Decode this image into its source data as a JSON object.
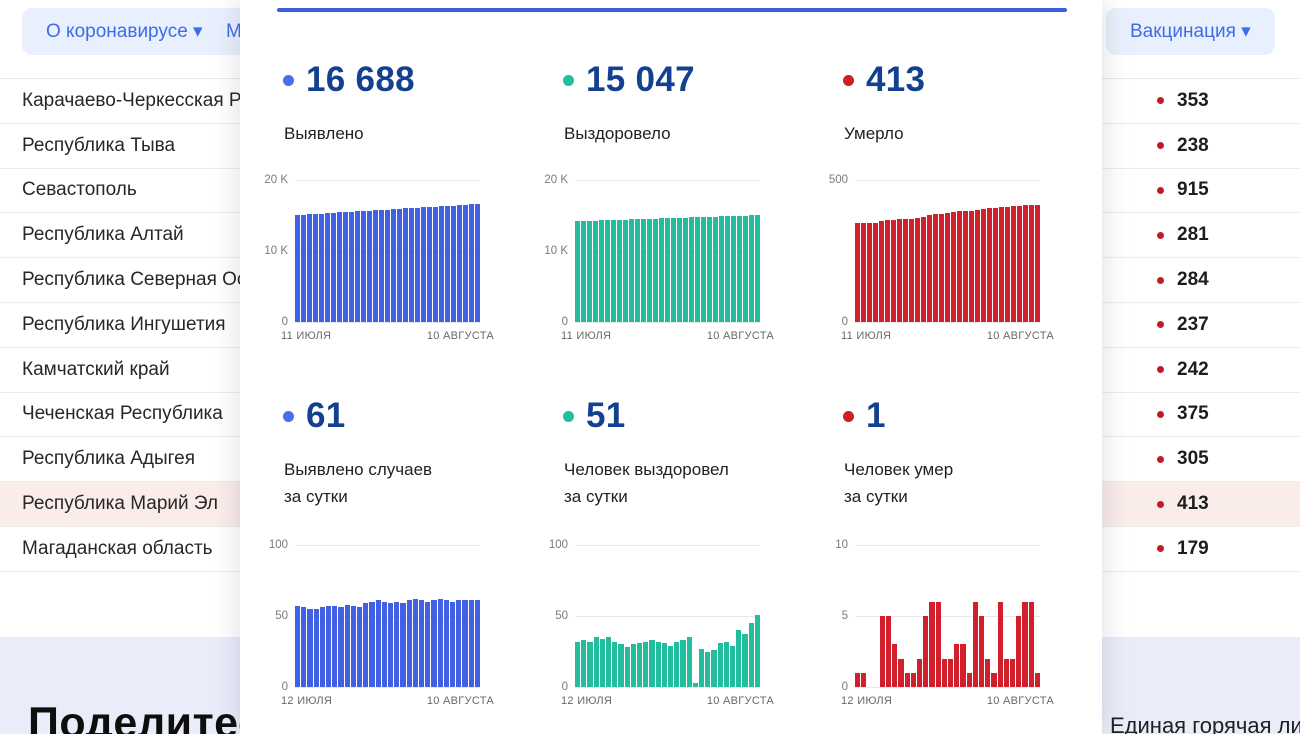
{
  "nav": {
    "about_label": "О коронавирусе ▾",
    "partial_label": "М",
    "vaccination_label": "Вакцинация ▾"
  },
  "table": {
    "rows": [
      {
        "region": "Карачаево-Черкесская Ре",
        "value": "353",
        "highlighted": false
      },
      {
        "region": "Республика Тыва",
        "value": "238",
        "highlighted": false
      },
      {
        "region": "Севастополь",
        "value": "915",
        "highlighted": false
      },
      {
        "region": "Республика Алтай",
        "value": "281",
        "highlighted": false
      },
      {
        "region": "Республика Северная Осе",
        "value": "284",
        "highlighted": false
      },
      {
        "region": "Республика Ингушетия",
        "value": "237",
        "highlighted": false
      },
      {
        "region": "Камчатский край",
        "value": "242",
        "highlighted": false
      },
      {
        "region": "Чеченская Республика",
        "value": "375",
        "highlighted": false
      },
      {
        "region": "Республика Адыгея",
        "value": "305",
        "highlighted": false
      },
      {
        "region": "Республика Марий Эл",
        "value": "413",
        "highlighted": true
      },
      {
        "region": "Магаданская область",
        "value": "179",
        "highlighted": false
      }
    ],
    "value_dot_color": "#C21B24"
  },
  "modal": {
    "accent_color": "#3A5FDB",
    "stats": [
      {
        "value": "16 688",
        "label_line1": "Выявлено",
        "label_line2": "",
        "accent": "#4A6CF1",
        "bar_color": "#4160E3",
        "chart": {
          "type": "bar",
          "ymax": 20000,
          "yticks": [
            "20 K",
            "10 K",
            "0"
          ],
          "x_start": "11 ИЮЛЯ",
          "x_end": "10 АВГУСТА",
          "values": [
            15057,
            15112,
            15167,
            15220,
            15272,
            15325,
            15378,
            15430,
            15482,
            15534,
            15586,
            15638,
            15690,
            15742,
            15793,
            15845,
            15896,
            15948,
            15999,
            16050,
            16101,
            16152,
            16203,
            16254,
            16305,
            16356,
            16407,
            16458,
            16509,
            16627,
            16688
          ]
        }
      },
      {
        "value": "15 047",
        "label_line1": "Выздоровело",
        "label_line2": "",
        "accent": "#1FBF9F",
        "bar_color": "#22BD9D",
        "chart": {
          "type": "bar",
          "ymax": 20000,
          "yticks": [
            "20 K",
            "10 K",
            "0"
          ],
          "x_start": "11 ИЮЛЯ",
          "x_end": "10 АВГУСТА",
          "values": [
            14210,
            14238,
            14266,
            14294,
            14322,
            14350,
            14378,
            14406,
            14434,
            14462,
            14490,
            14518,
            14546,
            14574,
            14602,
            14630,
            14658,
            14686,
            14714,
            14742,
            14770,
            14798,
            14826,
            14854,
            14882,
            14910,
            14938,
            14966,
            14994,
            15022,
            15047
          ]
        }
      },
      {
        "value": "413",
        "label_line1": "Умерло",
        "label_line2": "",
        "accent": "#CC1E25",
        "bar_color": "#D1202B",
        "chart": {
          "type": "bar",
          "ymax": 500,
          "yticks": [
            "500",
            "0"
          ],
          "x_start": "11 ИЮЛЯ",
          "x_end": "10 АВГУСТА",
          "values": [
            349,
            350,
            350,
            350,
            355,
            358,
            360,
            361,
            362,
            364,
            366,
            371,
            377,
            380,
            382,
            384,
            387,
            390,
            391,
            392,
            396,
            399,
            401,
            402,
            404,
            406,
            407,
            409,
            411,
            412,
            413
          ]
        }
      },
      {
        "value": "61",
        "label_line1": "Выявлено случаев",
        "label_line2": "за сутки",
        "accent": "#4A6CF1",
        "bar_color": "#4160E3",
        "chart": {
          "type": "bar",
          "ymax": 100,
          "yticks": [
            "100",
            "50",
            "0"
          ],
          "x_start": "12 ИЮЛЯ",
          "x_end": "10 АВГУСТА",
          "values": [
            57,
            56,
            55,
            55,
            56,
            57,
            57,
            56,
            58,
            57,
            56,
            59,
            60,
            61,
            60,
            59,
            60,
            59,
            61,
            62,
            61,
            60,
            61,
            62,
            61,
            60,
            61,
            61,
            61,
            61
          ]
        }
      },
      {
        "value": "51",
        "label_line1": "Человек выздоровел",
        "label_line2": "за сутки",
        "accent": "#1FBF9F",
        "bar_color": "#22BD9D",
        "chart": {
          "type": "bar",
          "ymax": 100,
          "yticks": [
            "100",
            "50",
            "0"
          ],
          "x_start": "12 ИЮЛЯ",
          "x_end": "10 АВГУСТА",
          "values": [
            32,
            33,
            32,
            35,
            34,
            35,
            32,
            30,
            28,
            30,
            31,
            32,
            33,
            32,
            31,
            29,
            32,
            33,
            35,
            3,
            27,
            25,
            26,
            31,
            32,
            29,
            40,
            37,
            45,
            51
          ]
        }
      },
      {
        "value": "1",
        "label_line1": "Человек умер",
        "label_line2": "за сутки",
        "accent": "#CC1E25",
        "bar_color": "#D1202B",
        "chart": {
          "type": "bar",
          "ymax": 10,
          "yticks": [
            "10",
            "5",
            "0"
          ],
          "x_start": "12 ИЮЛЯ",
          "x_end": "10 АВГУСТА",
          "values": [
            1,
            1,
            0,
            0,
            5,
            5,
            3,
            2,
            1,
            1,
            2,
            5,
            6,
            6,
            2,
            2,
            3,
            3,
            1,
            6,
            5,
            2,
            1,
            6,
            2,
            2,
            5,
            6,
            6,
            1
          ]
        }
      }
    ]
  },
  "footer": {
    "share_title": "Поделитесь",
    "hotline": "Единая горячая линия"
  }
}
